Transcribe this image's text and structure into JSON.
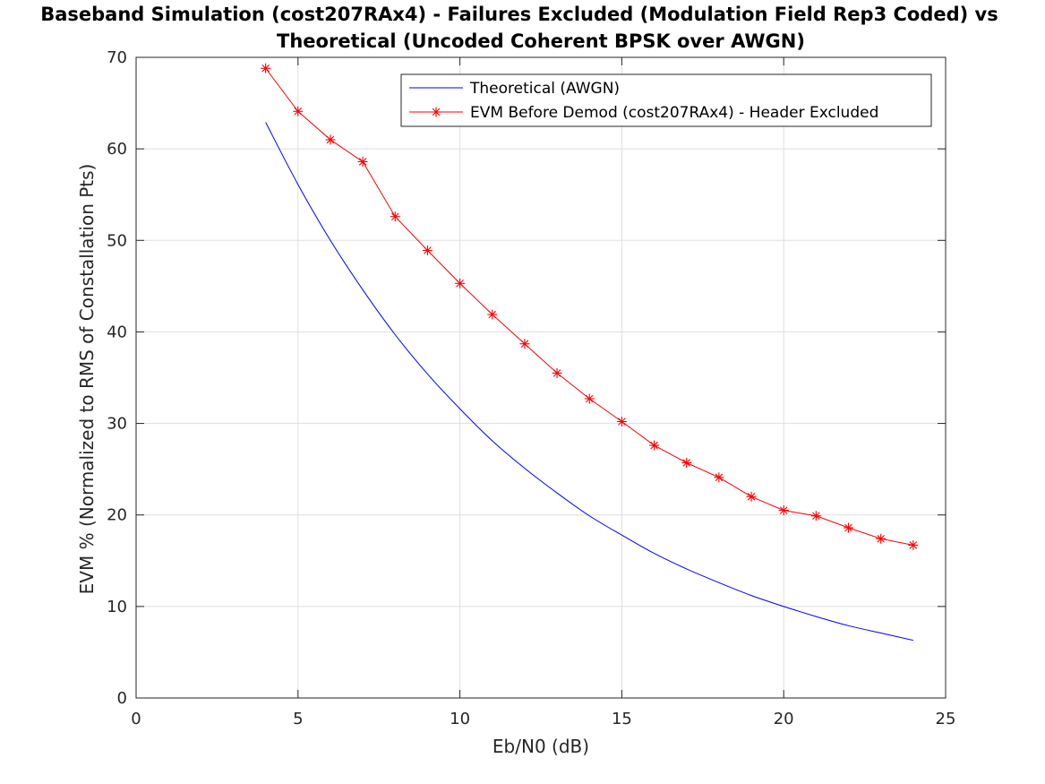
{
  "chart_data": {
    "type": "line",
    "title": [
      "Baseband Simulation (cost207RAx4) - Failures Excluded (Modulation Field Rep3 Coded) vs",
      "Theoretical (Uncoded Coherent BPSK over AWGN)"
    ],
    "xlabel": "Eb/N0 (dB)",
    "ylabel": "EVM % (Normalized to RMS of Constallation Pts)",
    "xlim": [
      0,
      25
    ],
    "ylim": [
      0,
      70
    ],
    "xticks": [
      0,
      5,
      10,
      15,
      20,
      25
    ],
    "yticks": [
      0,
      10,
      20,
      30,
      40,
      50,
      60,
      70
    ],
    "grid": true,
    "legend_position": "top-right",
    "series": [
      {
        "name": "Theoretical (AWGN)",
        "color": "#0000ff",
        "marker": "none",
        "x": [
          4,
          5,
          6,
          7,
          8,
          9,
          10,
          11,
          12,
          13,
          14,
          15,
          16,
          17,
          18,
          19,
          20,
          21,
          22,
          23,
          24
        ],
        "y": [
          62.9,
          56.1,
          50.0,
          44.6,
          39.7,
          35.4,
          31.6,
          28.1,
          25.1,
          22.4,
          19.9,
          17.8,
          15.8,
          14.1,
          12.6,
          11.2,
          10.0,
          8.9,
          7.9,
          7.1,
          6.3
        ]
      },
      {
        "name": "EVM Before Demod (cost207RAx4) - Header Excluded",
        "color": "#ff0000",
        "marker": "asterisk",
        "x": [
          4,
          5,
          6,
          7,
          8,
          9,
          10,
          11,
          12,
          13,
          14,
          15,
          16,
          17,
          18,
          19,
          20,
          21,
          22,
          23,
          24
        ],
        "y": [
          68.8,
          64.1,
          61.0,
          58.6,
          52.6,
          48.9,
          45.3,
          41.9,
          38.7,
          35.5,
          32.7,
          30.2,
          27.6,
          25.7,
          24.1,
          22.0,
          20.5,
          19.9,
          18.6,
          17.4,
          16.7
        ]
      }
    ]
  }
}
